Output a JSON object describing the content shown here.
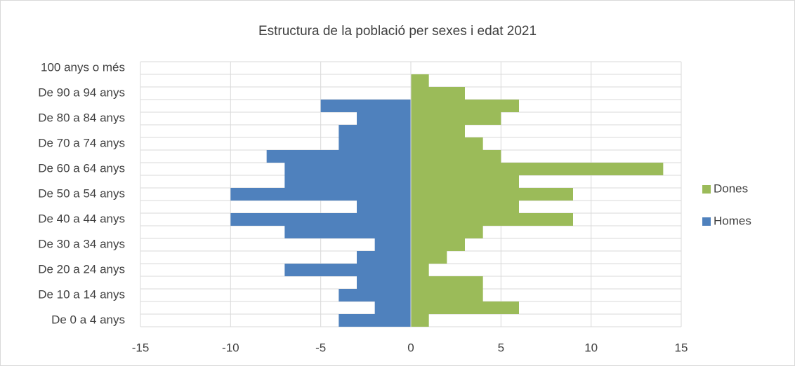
{
  "chart_data": {
    "type": "bar",
    "orientation": "horizontal",
    "stacked": true,
    "title": "Estructura de la població per sexes i edat 2021",
    "categories": [
      "De 0 a 4 anys",
      null,
      "De 10 a 14 anys",
      null,
      "De 20 a 24 anys",
      null,
      "De 30 a 34 anys",
      null,
      "De 40 a 44 anys",
      null,
      "De 50 a 54 anys",
      null,
      "De 60 a 64 anys",
      null,
      "De 70 a 74 anys",
      null,
      "De 80 a 84 anys",
      null,
      "De 90 a 94 anys",
      null,
      "100 anys o més"
    ],
    "series": [
      {
        "name": "Homes",
        "color": "#4f81bd",
        "values": [
          -4,
          -2,
          -4,
          -3,
          -7,
          -3,
          -2,
          -7,
          -10,
          -3,
          -10,
          -7,
          -7,
          -8,
          -4,
          -4,
          -3,
          -5,
          0,
          0,
          0
        ]
      },
      {
        "name": "Dones",
        "color": "#9bbb59",
        "values": [
          1,
          6,
          4,
          4,
          1,
          2,
          3,
          4,
          9,
          6,
          9,
          6,
          14,
          5,
          4,
          3,
          5,
          6,
          3,
          1,
          0
        ]
      }
    ],
    "xlim": [
      -15,
      15
    ],
    "xticks": [
      -15,
      -10,
      -5,
      0,
      5,
      10,
      15
    ],
    "grid": true,
    "legend": "right"
  }
}
